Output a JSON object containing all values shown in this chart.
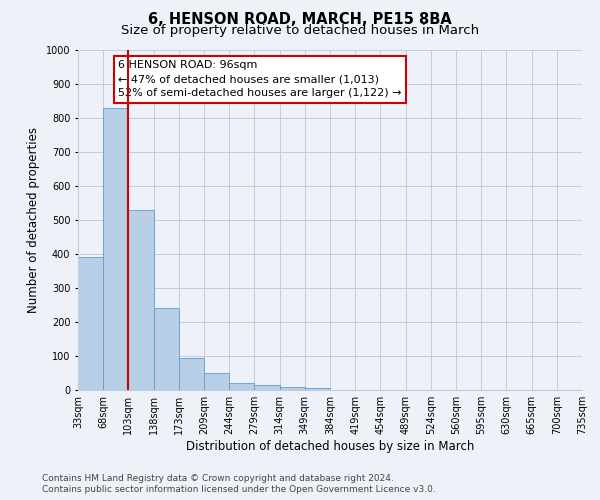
{
  "title": "6, HENSON ROAD, MARCH, PE15 8BA",
  "subtitle": "Size of property relative to detached houses in March",
  "xlabel": "Distribution of detached houses by size in March",
  "ylabel": "Number of detached properties",
  "bin_labels": [
    "33sqm",
    "68sqm",
    "103sqm",
    "138sqm",
    "173sqm",
    "209sqm",
    "244sqm",
    "279sqm",
    "314sqm",
    "349sqm",
    "384sqm",
    "419sqm",
    "454sqm",
    "489sqm",
    "524sqm",
    "560sqm",
    "595sqm",
    "630sqm",
    "665sqm",
    "700sqm",
    "735sqm"
  ],
  "bar_values": [
    390,
    830,
    530,
    240,
    95,
    50,
    20,
    15,
    10,
    5,
    0,
    0,
    0,
    0,
    0,
    0,
    0,
    0,
    0,
    0
  ],
  "bar_color": "#b8cfe8",
  "bar_edge_color": "#6699cc",
  "vline_x_bin": 2,
  "vline_color": "#cc0000",
  "annotation_line1": "6 HENSON ROAD: 96sqm",
  "annotation_line2": "← 47% of detached houses are smaller (1,013)",
  "annotation_line3": "52% of semi-detached houses are larger (1,122) →",
  "annotation_box_color": "#ffffff",
  "annotation_box_edge_color": "#cc0000",
  "ylim": [
    0,
    1000
  ],
  "yticks": [
    0,
    100,
    200,
    300,
    400,
    500,
    600,
    700,
    800,
    900,
    1000
  ],
  "footer_line1": "Contains HM Land Registry data © Crown copyright and database right 2024.",
  "footer_line2": "Contains public sector information licensed under the Open Government Licence v3.0.",
  "bg_color": "#eef2f8",
  "plot_bg_color": "#eef2f8",
  "grid_color": "#c0cce0",
  "title_fontsize": 10.5,
  "subtitle_fontsize": 9.5,
  "axis_label_fontsize": 8.5,
  "tick_fontsize": 7,
  "annotation_fontsize": 8,
  "footer_fontsize": 6.5
}
